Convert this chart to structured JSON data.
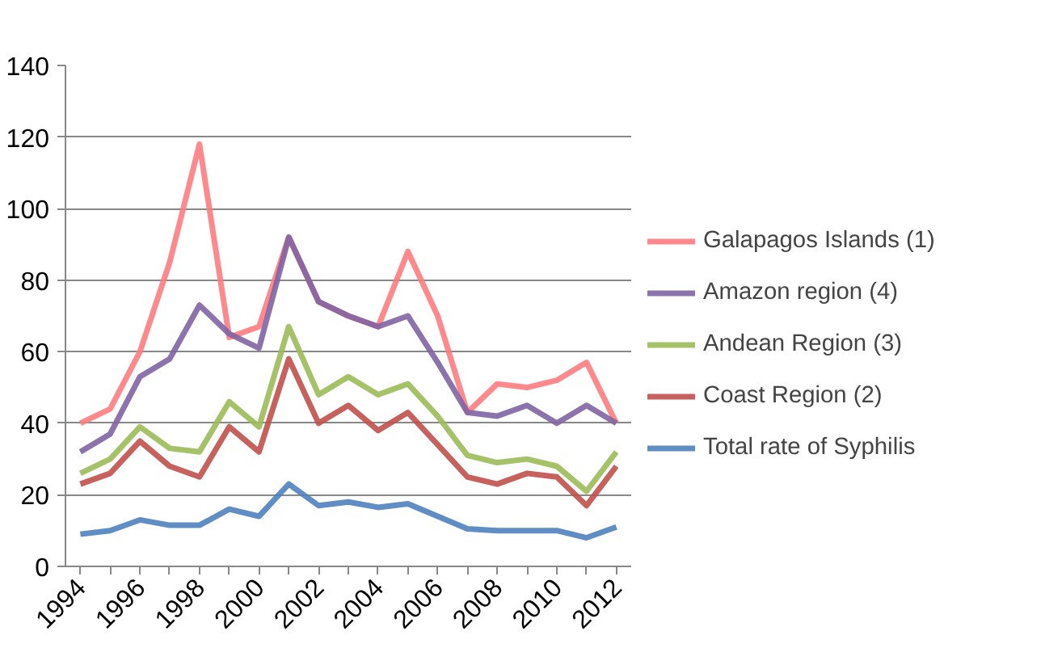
{
  "chart_data": {
    "type": "line",
    "x": [
      1994,
      1995,
      1996,
      1997,
      1998,
      1999,
      2000,
      2001,
      2002,
      2003,
      2004,
      2005,
      2006,
      2007,
      2008,
      2009,
      2010,
      2011,
      2012
    ],
    "series": [
      {
        "name": "Galapagos Islands (1)",
        "color": "#ff7c80",
        "values": [
          40,
          44,
          60,
          85,
          118,
          64,
          67,
          92,
          74,
          70,
          67,
          88,
          70,
          43,
          51,
          50,
          52,
          57,
          40
        ]
      },
      {
        "name": "Amazon region (4)",
        "color": "#8064a2",
        "values": [
          32,
          37,
          53,
          58,
          73,
          65,
          61,
          92,
          74,
          70,
          67,
          70,
          57,
          43,
          42,
          45,
          40,
          45,
          40
        ]
      },
      {
        "name": "Andean Region (3)",
        "color": "#9bbb59",
        "values": [
          26,
          30,
          39,
          33,
          32,
          46,
          39,
          67,
          48,
          53,
          48,
          51,
          42,
          31,
          29,
          30,
          28,
          21,
          32
        ]
      },
      {
        "name": "Coast Region (2)",
        "color": "#c0504d",
        "values": [
          23,
          26,
          35,
          28,
          25,
          39,
          32,
          58,
          40,
          45,
          38,
          43,
          34,
          25,
          23,
          26,
          25,
          17,
          28
        ]
      },
      {
        "name": "Total rate of Syphilis",
        "color": "#4f81bd",
        "values": [
          9,
          10,
          13,
          11.5,
          11.5,
          16,
          14,
          23,
          17,
          18,
          16.5,
          17.5,
          14,
          10.5,
          10,
          10,
          10,
          8,
          11
        ]
      }
    ],
    "xlim": [
      1993.5,
      2012.5
    ],
    "xticks": [
      1994,
      {
        "value": 1995,
        "label": null
      },
      1996,
      {
        "value": 1997,
        "label": null
      },
      1998,
      {
        "value": 1999,
        "label": null
      },
      2000,
      {
        "value": 2001,
        "label": null
      },
      2002,
      {
        "value": 2003,
        "label": null
      },
      2004,
      {
        "value": 2005,
        "label": null
      },
      2006,
      {
        "value": 2007,
        "label": null
      },
      2008,
      {
        "value": 2009,
        "label": null
      },
      2010,
      {
        "value": 2011,
        "label": null
      },
      2012
    ],
    "ylim": [
      0,
      140
    ],
    "yticks": [
      0,
      20,
      40,
      60,
      80,
      100,
      120,
      140
    ],
    "grid": "y",
    "legend": "right",
    "marker": "none",
    "line_style": "solid"
  }
}
